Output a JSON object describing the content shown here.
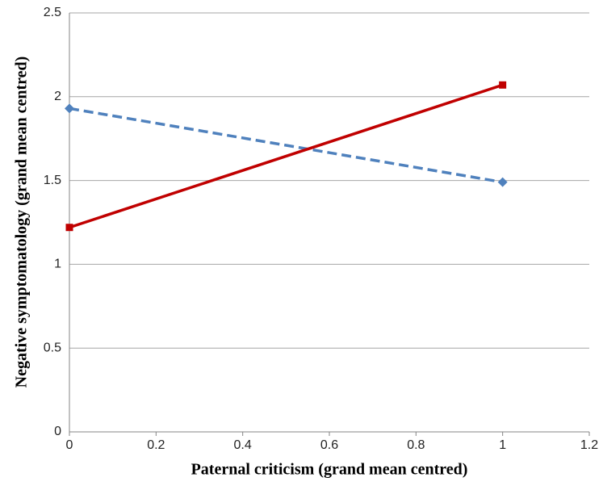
{
  "chart_data": {
    "type": "line",
    "x_label": "Paternal criticism (grand mean centred)",
    "y_label": "Negative symptomatology (grand mean centred)",
    "x": [
      0,
      1
    ],
    "series": [
      {
        "color": "#4f81bd",
        "dashed": true,
        "marker": "diamond",
        "values": [
          1.93,
          1.49
        ]
      },
      {
        "color": "#c00000",
        "dashed": false,
        "marker": "square",
        "values": [
          1.22,
          2.07
        ]
      }
    ],
    "xlim": [
      0,
      1.2
    ],
    "xticks": [
      0,
      0.2,
      0.4,
      0.6,
      0.8,
      1,
      1.2
    ],
    "ylim": [
      0,
      2.5
    ],
    "yticks": [
      0,
      0.5,
      1,
      1.5,
      2,
      2.5
    ],
    "grid": true
  }
}
